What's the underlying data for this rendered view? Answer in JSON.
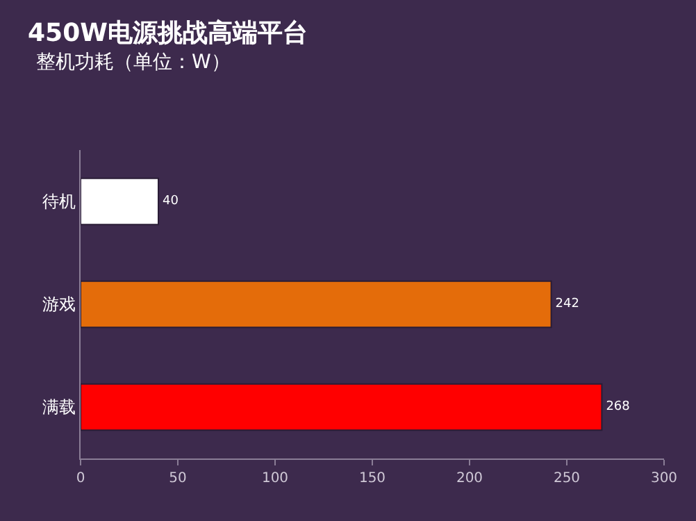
{
  "chart_data": {
    "type": "bar",
    "orientation": "horizontal",
    "title": "450W电源挑战高端平台",
    "subtitle": "整机功耗（单位：W）",
    "categories": [
      "待机",
      "游戏",
      "满载"
    ],
    "values": [
      40,
      242,
      268
    ],
    "colors": [
      "#ffffff",
      "#e46c0a",
      "#ff0000"
    ],
    "xlim": [
      0,
      300
    ],
    "xticks": [
      0,
      50,
      100,
      150,
      200,
      250,
      300
    ],
    "data_labels": true
  }
}
